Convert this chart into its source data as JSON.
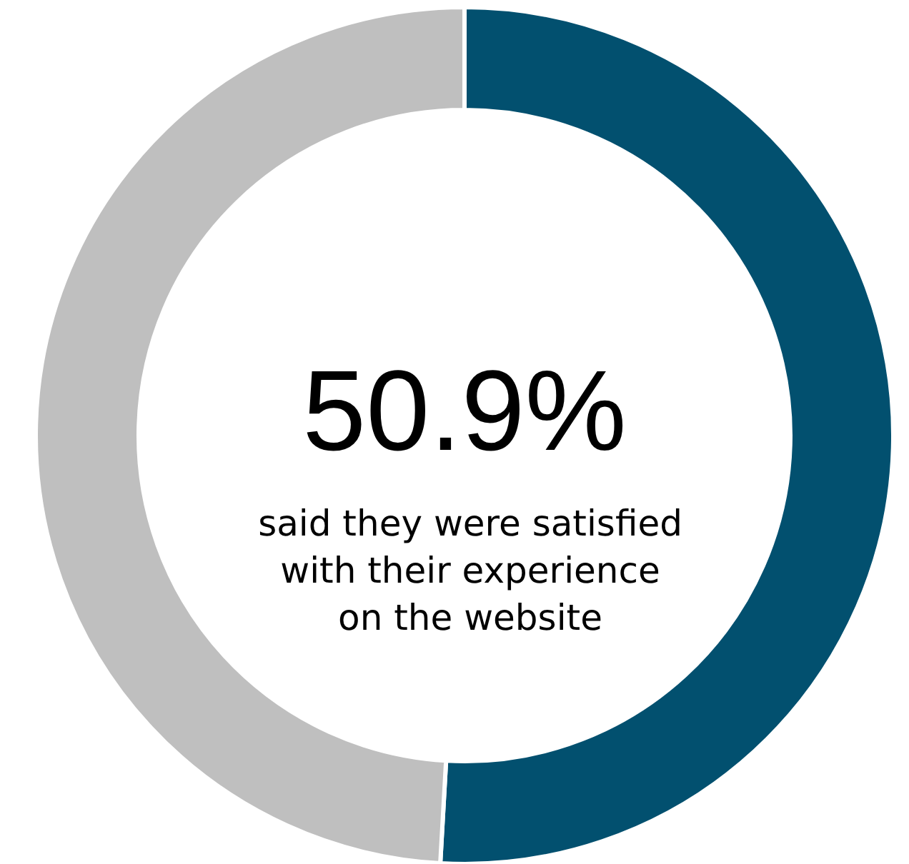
{
  "chart_data": {
    "type": "donut",
    "categories": [
      null,
      null
    ],
    "values": [
      50.9,
      49.1
    ],
    "colors": [
      "#02506f",
      "#bfbfbf"
    ],
    "value_labels": [
      "50.9%",
      null
    ],
    "annotations": [
      "said they were satisfied\nwith their experience\non the website"
    ]
  }
}
